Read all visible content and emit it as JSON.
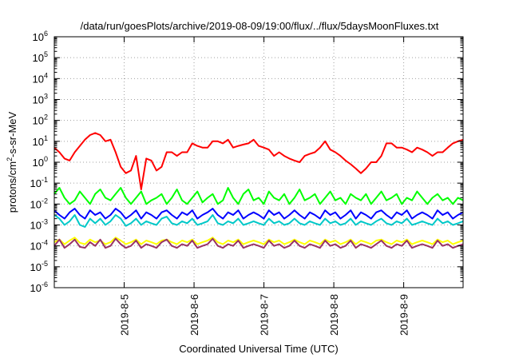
{
  "chart_data": {
    "type": "line",
    "title": "/data/run/goesPlots/archive/2019-08-09/19:00/flux/../flux/5daysMoonFluxes.txt",
    "xlabel": "Coordinated Universal Time (UTC)",
    "ylabel_parts": [
      "protons/cm",
      "2",
      "-s-sr-MeV"
    ],
    "y_scale": "log",
    "ylim": [
      1e-06,
      1000000.0
    ],
    "y_ticks": [
      {
        "base": "10",
        "exp": "-6"
      },
      {
        "base": "10",
        "exp": "-5"
      },
      {
        "base": "10",
        "exp": "-4"
      },
      {
        "base": "10",
        "exp": "-3"
      },
      {
        "base": "10",
        "exp": "-2"
      },
      {
        "base": "10",
        "exp": "-1"
      },
      {
        "base": "10",
        "exp": "0"
      },
      {
        "base": "10",
        "exp": "1"
      },
      {
        "base": "10",
        "exp": "2"
      },
      {
        "base": "10",
        "exp": "3"
      },
      {
        "base": "10",
        "exp": "4"
      },
      {
        "base": "10",
        "exp": "5"
      },
      {
        "base": "10",
        "exp": "6"
      }
    ],
    "x_range_days": [
      4.0,
      9.85
    ],
    "x_ticks": [
      {
        "label": "2019-8-5",
        "day": 5
      },
      {
        "label": "2019-8-6",
        "day": 6
      },
      {
        "label": "2019-8-7",
        "day": 7
      },
      {
        "label": "2019-8-8",
        "day": 8
      },
      {
        "label": "2019-8-9",
        "day": 9
      }
    ],
    "grid": true,
    "series": [
      {
        "color": "#ff0000",
        "values": [
          5,
          3,
          1.5,
          1.2,
          3,
          6,
          12,
          20,
          25,
          20,
          10,
          12,
          3,
          0.6,
          0.3,
          0.4,
          2,
          0.05,
          1.5,
          1.2,
          0.4,
          0.6,
          3,
          3,
          2,
          3,
          3,
          8,
          6,
          5,
          5,
          10,
          10,
          8,
          12,
          5,
          6,
          7,
          8,
          12,
          6,
          5,
          4,
          2,
          3,
          2,
          1.5,
          1.2,
          1,
          2,
          2.5,
          3,
          5,
          10,
          4,
          3,
          2,
          1.2,
          0.8,
          0.5,
          0.3,
          0.5,
          1,
          1,
          2,
          8,
          8,
          5,
          5,
          4,
          3,
          5,
          4,
          3,
          2,
          3,
          3,
          5,
          8,
          10,
          12
        ]
      },
      {
        "color": "#00ff00",
        "values": [
          0.03,
          0.06,
          0.02,
          0.01,
          0.015,
          0.04,
          0.02,
          0.01,
          0.03,
          0.05,
          0.02,
          0.015,
          0.03,
          0.06,
          0.02,
          0.01,
          0.02,
          0.04,
          0.01,
          0.015,
          0.02,
          0.03,
          0.01,
          0.02,
          0.05,
          0.015,
          0.01,
          0.02,
          0.04,
          0.012,
          0.02,
          0.03,
          0.01,
          0.015,
          0.06,
          0.02,
          0.01,
          0.03,
          0.05,
          0.015,
          0.02,
          0.01,
          0.04,
          0.02,
          0.015,
          0.03,
          0.01,
          0.02,
          0.05,
          0.015,
          0.02,
          0.03,
          0.01,
          0.02,
          0.04,
          0.015,
          0.02,
          0.01,
          0.03,
          0.02,
          0.015,
          0.03,
          0.01,
          0.02,
          0.04,
          0.015,
          0.02,
          0.03,
          0.01,
          0.02,
          0.015,
          0.04,
          0.02,
          0.01,
          0.02,
          0.03,
          0.015,
          0.02,
          0.01,
          0.02,
          0.015
        ]
      },
      {
        "color": "#0000ff",
        "values": [
          0.005,
          0.003,
          0.002,
          0.004,
          0.006,
          0.003,
          0.002,
          0.005,
          0.003,
          0.004,
          0.002,
          0.003,
          0.006,
          0.004,
          0.002,
          0.003,
          0.005,
          0.002,
          0.004,
          0.003,
          0.002,
          0.004,
          0.005,
          0.003,
          0.002,
          0.004,
          0.003,
          0.005,
          0.002,
          0.003,
          0.004,
          0.006,
          0.003,
          0.002,
          0.004,
          0.003,
          0.005,
          0.002,
          0.003,
          0.004,
          0.003,
          0.002,
          0.005,
          0.003,
          0.004,
          0.002,
          0.003,
          0.005,
          0.003,
          0.002,
          0.004,
          0.003,
          0.002,
          0.005,
          0.003,
          0.004,
          0.002,
          0.003,
          0.005,
          0.002,
          0.004,
          0.003,
          0.002,
          0.004,
          0.005,
          0.003,
          0.002,
          0.004,
          0.003,
          0.005,
          0.002,
          0.003,
          0.004,
          0.003,
          0.002,
          0.005,
          0.003,
          0.004,
          0.002,
          0.003,
          0.004
        ]
      },
      {
        "color": "#00c8c8",
        "values": [
          0.003,
          0.002,
          0.001,
          0.0015,
          0.003,
          0.001,
          0.0008,
          0.002,
          0.0012,
          0.002,
          0.001,
          0.0015,
          0.003,
          0.002,
          0.0009,
          0.0012,
          0.002,
          0.001,
          0.0015,
          0.0012,
          0.001,
          0.002,
          0.0025,
          0.0012,
          0.001,
          0.0015,
          0.0012,
          0.002,
          0.001,
          0.0012,
          0.0015,
          0.003,
          0.0012,
          0.001,
          0.0015,
          0.0012,
          0.002,
          0.001,
          0.0012,
          0.0015,
          0.0012,
          0.001,
          0.002,
          0.0012,
          0.0015,
          0.001,
          0.0012,
          0.002,
          0.0012,
          0.001,
          0.0015,
          0.0012,
          0.001,
          0.002,
          0.0012,
          0.0015,
          0.001,
          0.0012,
          0.002,
          0.001,
          0.0015,
          0.0012,
          0.001,
          0.0015,
          0.002,
          0.0012,
          0.001,
          0.0015,
          0.0012,
          0.002,
          0.001,
          0.0012,
          0.0015,
          0.0012,
          0.001,
          0.002,
          0.0012,
          0.0015,
          0.001,
          0.0012,
          0.0015
        ]
      },
      {
        "color": "#ffff00",
        "values": [
          0.00015,
          0.0002,
          0.00012,
          0.00018,
          0.00025,
          0.00014,
          0.00012,
          0.0002,
          0.00015,
          0.00018,
          0.00012,
          0.00015,
          0.00025,
          0.00018,
          0.00012,
          0.00015,
          0.0002,
          0.00012,
          0.00018,
          0.00015,
          0.00012,
          0.00018,
          0.0002,
          0.00015,
          0.00012,
          0.00018,
          0.00015,
          0.0002,
          0.00012,
          0.00015,
          0.00018,
          0.00025,
          0.00015,
          0.00012,
          0.00018,
          0.00015,
          0.0002,
          0.00012,
          0.00015,
          0.00018,
          0.00015,
          0.00012,
          0.0002,
          0.00015,
          0.00018,
          0.00012,
          0.00015,
          0.0002,
          0.00015,
          0.00012,
          0.00018,
          0.00015,
          0.00012,
          0.0002,
          0.00015,
          0.00018,
          0.00012,
          0.00015,
          0.0002,
          0.00012,
          0.00018,
          0.00015,
          0.00012,
          0.00018,
          0.0002,
          0.00015,
          0.00012,
          0.00018,
          0.00015,
          0.0002,
          0.00012,
          0.00015,
          0.00018,
          0.00015,
          0.00012,
          0.0002,
          0.00015,
          0.00018,
          0.00012,
          0.00015,
          0.00018
        ]
      },
      {
        "color": "#993366",
        "values": [
          0.0001,
          0.0002,
          8e-05,
          0.00012,
          0.0002,
          9e-05,
          8e-05,
          0.00015,
          0.0001,
          0.0002,
          8e-05,
          0.0001,
          0.00022,
          0.00012,
          8e-05,
          0.0001,
          0.00018,
          8e-05,
          0.00012,
          0.0001,
          8e-05,
          0.00015,
          0.0002,
          0.0001,
          8e-05,
          0.00012,
          0.0001,
          0.00018,
          8e-05,
          0.0001,
          0.00012,
          0.00022,
          0.0001,
          8e-05,
          0.00012,
          0.0001,
          0.00018,
          8e-05,
          0.0001,
          0.00012,
          0.0001,
          8e-05,
          0.00018,
          0.0001,
          0.00012,
          8e-05,
          0.0001,
          0.00018,
          0.0001,
          8e-05,
          0.00012,
          0.0001,
          8e-05,
          0.00018,
          0.0001,
          0.00012,
          8e-05,
          0.0001,
          0.00018,
          8e-05,
          0.00012,
          0.0001,
          8e-05,
          0.00012,
          0.00018,
          0.0001,
          8e-05,
          0.00012,
          0.0001,
          0.00018,
          8e-05,
          0.0001,
          0.00012,
          0.0001,
          8e-05,
          0.00018,
          0.0001,
          0.00012,
          8e-05,
          0.0001,
          0.00012
        ]
      }
    ]
  }
}
